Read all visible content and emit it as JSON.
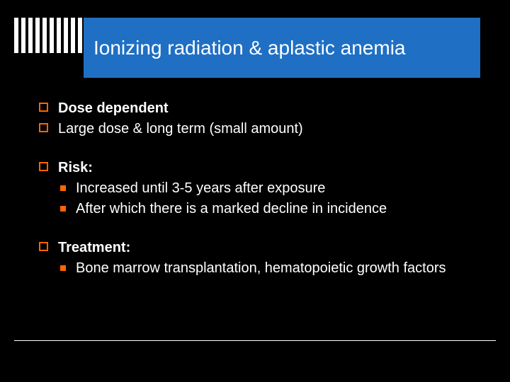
{
  "title": "Ionizing radiation & aplastic anemia",
  "colors": {
    "background": "#000000",
    "title_bar": "#1f6fc4",
    "accent": "#ff6600",
    "text": "#ffffff"
  },
  "typography": {
    "title_fontsize": 28,
    "body_fontsize": 20,
    "font_family": "Arial"
  },
  "bullets": [
    {
      "text": "Dose dependent",
      "bold": true
    },
    {
      "text": "Large dose & long term (small amount)",
      "bold": false
    }
  ],
  "risk": {
    "label": "Risk:",
    "items": [
      "Increased until 3-5 years after exposure",
      "After which there is a marked decline in incidence"
    ]
  },
  "treatment": {
    "label": "Treatment:",
    "items": [
      "Bone marrow transplantation, hematopoietic growth factors"
    ]
  }
}
